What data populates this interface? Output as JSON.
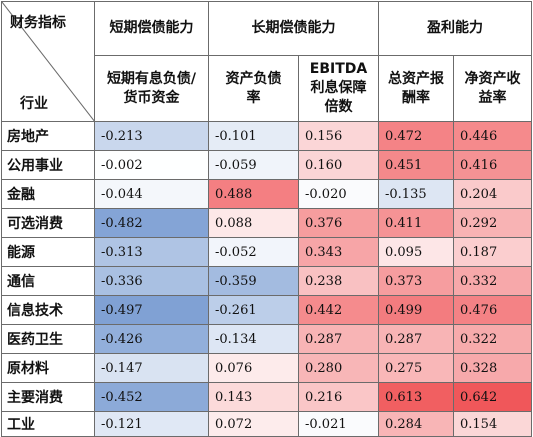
{
  "corner": {
    "top": "财务指标",
    "bottom": "行业"
  },
  "groups": [
    {
      "label": "短期偿债能力",
      "span": 1
    },
    {
      "label": "长期偿债能力",
      "span": 2
    },
    {
      "label": "盈利能力",
      "span": 2
    }
  ],
  "chart_data": {
    "type": "heatmap",
    "columns": [
      "短期有息负债/货币资金",
      "资产负债率",
      "EBITDA利息保障倍数",
      "总资产报酬率",
      "净资产收益率"
    ],
    "column_header_lines": [
      [
        "短期有息负债/",
        "货币资金"
      ],
      [
        "资产负债",
        "率"
      ],
      [
        "EBITDA",
        "利息保障",
        "倍数"
      ],
      [
        "总资产报",
        "酬率"
      ],
      [
        "净资产收",
        "益率"
      ]
    ],
    "rows": [
      {
        "industry": "房地产",
        "values": [
          "-0.213",
          "-0.101",
          "0.156",
          "0.472",
          "0.446"
        ]
      },
      {
        "industry": "公用事业",
        "values": [
          "-0.002",
          "-0.059",
          "0.160",
          "0.451",
          "0.416"
        ]
      },
      {
        "industry": "金融",
        "values": [
          "-0.044",
          "0.488",
          "-0.020",
          "-0.135",
          "0.204"
        ]
      },
      {
        "industry": "可选消费",
        "values": [
          "-0.482",
          "0.088",
          "0.376",
          "0.411",
          "0.292"
        ]
      },
      {
        "industry": "能源",
        "values": [
          "-0.313",
          "-0.052",
          "0.343",
          "0.095",
          "0.187"
        ]
      },
      {
        "industry": "通信",
        "values": [
          "-0.336",
          "-0.359",
          "0.238",
          "0.373",
          "0.332"
        ]
      },
      {
        "industry": "信息技术",
        "values": [
          "-0.497",
          "-0.261",
          "0.442",
          "0.499",
          "0.476"
        ]
      },
      {
        "industry": "医药卫生",
        "values": [
          "-0.426",
          "-0.134",
          "0.287",
          "0.287",
          "0.322"
        ]
      },
      {
        "industry": "原材料",
        "values": [
          "-0.147",
          "0.076",
          "0.280",
          "0.275",
          "0.328"
        ]
      },
      {
        "industry": "主要消费",
        "values": [
          "-0.452",
          "0.143",
          "0.216",
          "0.613",
          "0.642"
        ]
      },
      {
        "industry": "工业",
        "values": [
          "-0.121",
          "0.072",
          "-0.021",
          "0.284",
          "0.154"
        ]
      }
    ],
    "color_scale": {
      "negative": "#5b86c8",
      "neutral": "#ffffff",
      "positive": "#f0575a",
      "extreme": 0.642
    }
  }
}
